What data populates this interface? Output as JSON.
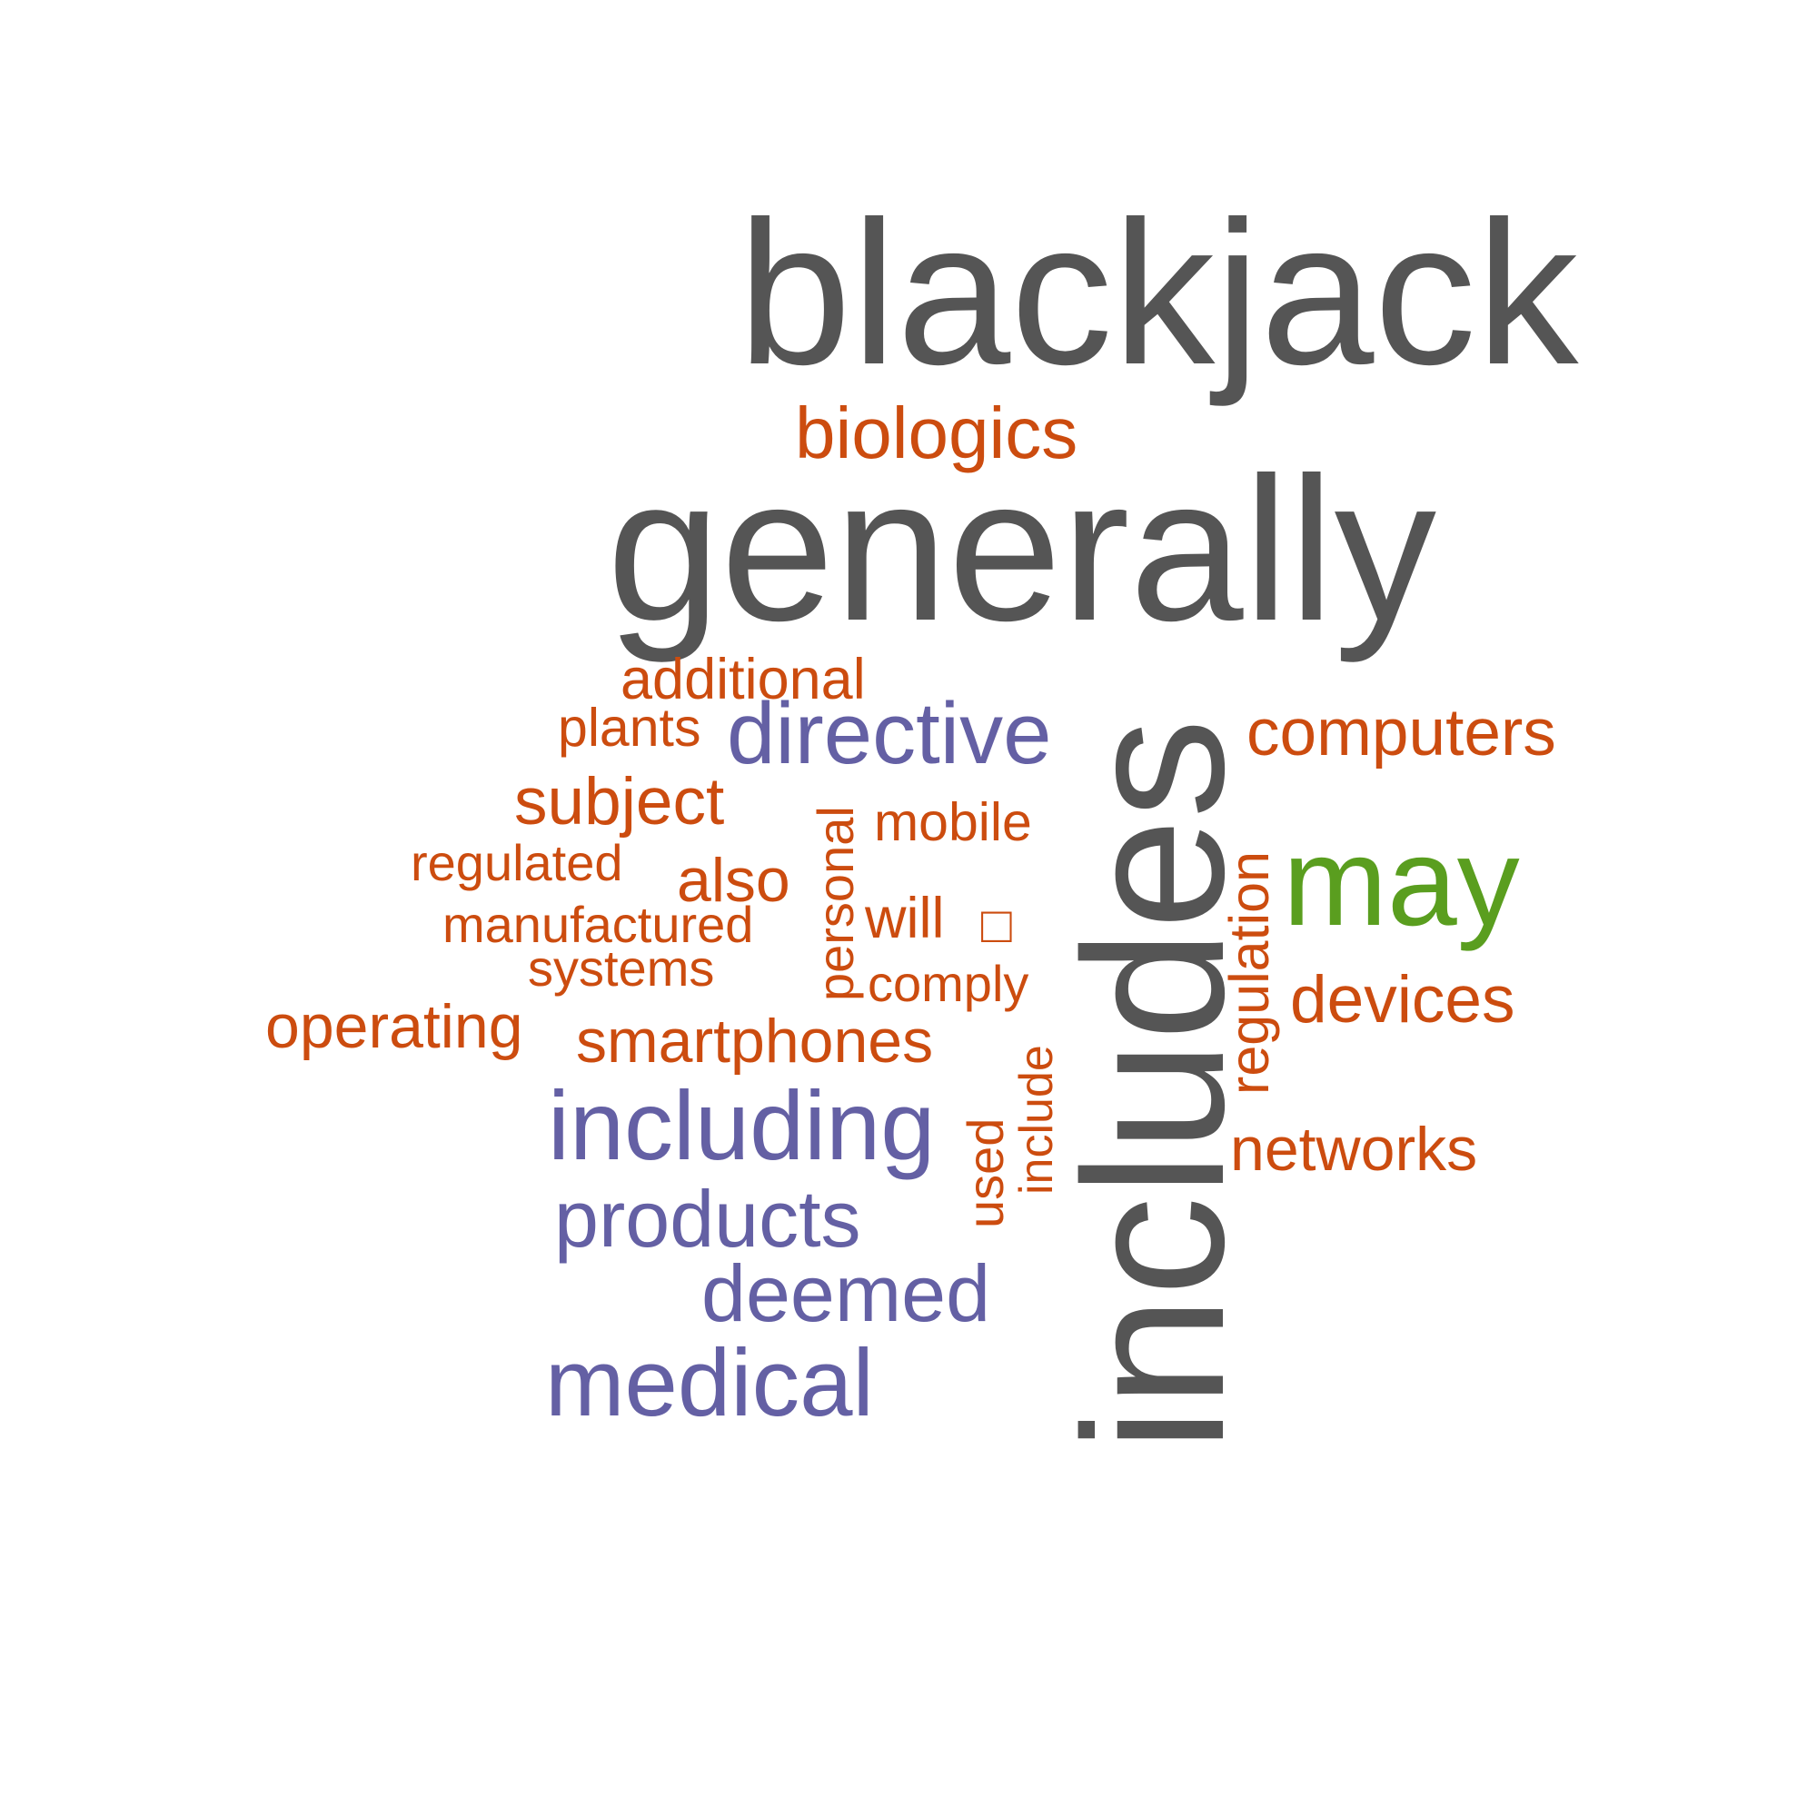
{
  "colors": {
    "dark": "#555555",
    "orange": "#cc4c0f",
    "purple": "#6460a4",
    "green": "#5a9e1f"
  },
  "words": {
    "blackjack": "blackjack",
    "generally": "generally",
    "includes": "includes",
    "biologics": "biologics",
    "may": "may",
    "directive": "directive",
    "including": "including",
    "products": "products",
    "deemed": "deemed",
    "medical": "medical",
    "additional": "additional",
    "plants": "plants",
    "computers": "computers",
    "subject": "subject",
    "mobile": "mobile",
    "regulated": "regulated",
    "also": "also",
    "manufactured": "manufactured",
    "will": "will",
    "personal": "personal",
    "systems": "systems",
    "comply": "comply",
    "operating": "operating",
    "smartphones": "smartphones",
    "devices": "devices",
    "regulation": "regulation",
    "networks": "networks",
    "include": "include",
    "used": "used",
    "missing_glyph": "□"
  }
}
